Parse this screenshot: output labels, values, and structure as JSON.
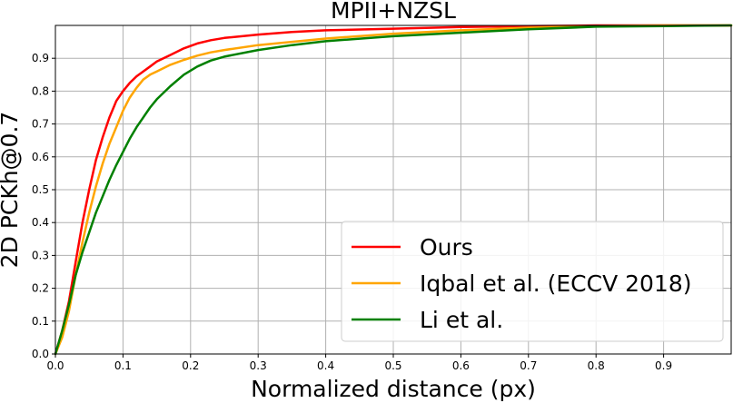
{
  "chart_data": {
    "type": "line",
    "title": "MPII+NZSL",
    "xlabel": "Normalized distance (px)",
    "ylabel": "2D PCKh@0.7",
    "xlim": [
      0.0,
      1.0
    ],
    "ylim": [
      0.0,
      1.0
    ],
    "x_ticks": [
      "0.0",
      "0.1",
      "0.2",
      "0.3",
      "0.4",
      "0.5",
      "0.6",
      "0.7",
      "0.8",
      "0.9"
    ],
    "x_tick_values": [
      0.0,
      0.1,
      0.2,
      0.3,
      0.4,
      0.5,
      0.6,
      0.7,
      0.8,
      0.9
    ],
    "y_ticks": [
      "0.0",
      "0.1",
      "0.2",
      "0.3",
      "0.4",
      "0.5",
      "0.6",
      "0.7",
      "0.8",
      "0.9"
    ],
    "y_tick_values": [
      0.0,
      0.1,
      0.2,
      0.3,
      0.4,
      0.5,
      0.6,
      0.7,
      0.8,
      0.9
    ],
    "grid": true,
    "legend_position": "bottom-right",
    "series": [
      {
        "name": "Ours",
        "color": "#ff0000",
        "x": [
          0.0,
          0.01,
          0.02,
          0.03,
          0.04,
          0.05,
          0.06,
          0.07,
          0.08,
          0.09,
          0.1,
          0.11,
          0.12,
          0.13,
          0.14,
          0.15,
          0.17,
          0.19,
          0.21,
          0.23,
          0.25,
          0.3,
          0.35,
          0.4,
          0.5,
          0.6,
          0.7,
          0.8,
          0.9,
          1.0
        ],
        "y": [
          0.0,
          0.07,
          0.16,
          0.28,
          0.4,
          0.5,
          0.59,
          0.66,
          0.72,
          0.77,
          0.8,
          0.825,
          0.845,
          0.86,
          0.875,
          0.89,
          0.91,
          0.93,
          0.945,
          0.955,
          0.962,
          0.972,
          0.98,
          0.985,
          0.99,
          0.995,
          0.998,
          1.0,
          1.0,
          1.0
        ]
      },
      {
        "name": "Iqbal et al. (ECCV 2018)",
        "color": "#ffa500",
        "x": [
          0.0,
          0.01,
          0.02,
          0.03,
          0.04,
          0.05,
          0.06,
          0.07,
          0.08,
          0.09,
          0.1,
          0.11,
          0.12,
          0.13,
          0.14,
          0.15,
          0.17,
          0.19,
          0.21,
          0.23,
          0.25,
          0.3,
          0.35,
          0.4,
          0.5,
          0.6,
          0.7,
          0.8,
          0.9,
          1.0
        ],
        "y": [
          0.0,
          0.05,
          0.13,
          0.24,
          0.34,
          0.43,
          0.51,
          0.58,
          0.64,
          0.69,
          0.74,
          0.78,
          0.81,
          0.835,
          0.85,
          0.86,
          0.88,
          0.895,
          0.908,
          0.918,
          0.925,
          0.94,
          0.95,
          0.96,
          0.975,
          0.985,
          0.993,
          0.998,
          1.0,
          1.0
        ]
      },
      {
        "name": "Li et al.",
        "color": "#008000",
        "x": [
          0.0,
          0.01,
          0.02,
          0.03,
          0.04,
          0.05,
          0.06,
          0.07,
          0.08,
          0.09,
          0.1,
          0.11,
          0.12,
          0.13,
          0.14,
          0.15,
          0.17,
          0.19,
          0.21,
          0.23,
          0.25,
          0.3,
          0.35,
          0.4,
          0.5,
          0.6,
          0.7,
          0.8,
          0.9,
          1.0
        ],
        "y": [
          0.0,
          0.07,
          0.15,
          0.24,
          0.31,
          0.37,
          0.43,
          0.48,
          0.53,
          0.575,
          0.615,
          0.655,
          0.69,
          0.72,
          0.75,
          0.775,
          0.815,
          0.85,
          0.875,
          0.893,
          0.905,
          0.925,
          0.94,
          0.952,
          0.967,
          0.978,
          0.988,
          0.996,
          0.998,
          1.0
        ]
      }
    ]
  }
}
